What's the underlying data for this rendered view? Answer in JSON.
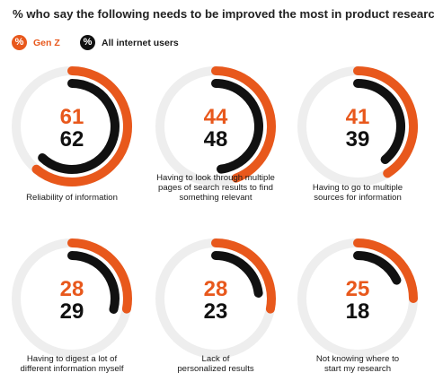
{
  "title": "% who say the following needs to be improved the most in product research",
  "legend": [
    {
      "name": "Gen Z",
      "color": "#e8581c",
      "icon": "percent-icon",
      "glyph": "%"
    },
    {
      "name": "All internet users",
      "color": "#111111",
      "icon": "percent-icon",
      "glyph": "%"
    }
  ],
  "chart_data": {
    "type": "radial-bar",
    "scale_max": 100,
    "series": [
      {
        "name": "Gen Z",
        "color": "#e8581c"
      },
      {
        "name": "All internet users",
        "color": "#111111"
      }
    ],
    "items": [
      {
        "category": "Reliability of information",
        "gen_z": 61,
        "all": 62
      },
      {
        "category": "Having to look through multiple pages of search results to find something relevant",
        "gen_z": 44,
        "all": 48
      },
      {
        "category": "Having to go to multiple sources for information",
        "gen_z": 41,
        "all": 39
      },
      {
        "category": "Having to digest a lot of different information myself",
        "gen_z": 28,
        "all": 29
      },
      {
        "category": "Lack of personalized results",
        "gen_z": 28,
        "all": 23
      },
      {
        "category": "Not knowing where to start my research",
        "gen_z": 25,
        "all": 18
      }
    ],
    "captions": [
      [
        "Reliability of information"
      ],
      [
        "Having to look through multiple",
        "pages of search results to find",
        "something relevant"
      ],
      [
        "Having to go to multiple",
        "sources for information"
      ],
      [
        "Having to digest a lot of",
        "different information myself"
      ],
      [
        "Lack of",
        "personalized results"
      ],
      [
        "Not knowing where to",
        "start my research"
      ]
    ],
    "colors": {
      "gen_z": "#e8581c",
      "all": "#111111",
      "track": "#eeeeee"
    }
  }
}
